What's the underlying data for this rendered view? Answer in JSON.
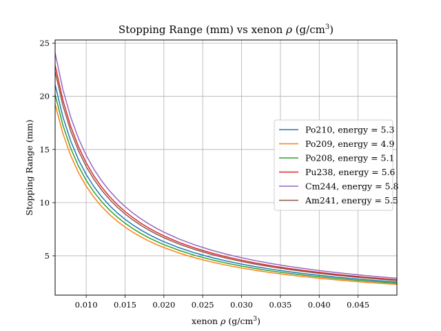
{
  "chart_data": {
    "type": "line",
    "title_main": "Stopping Range (mm) vs xenon ",
    "title_rho": "ρ",
    "title_units_pre": " (g/cm",
    "title_units_sup": "3",
    "title_units_post": ")",
    "xlabel_main": "xenon ",
    "xlabel_rho": "ρ",
    "xlabel_units_pre": " (g/cm",
    "xlabel_units_sup": "3",
    "xlabel_units_post": ")",
    "ylabel": "Stopping Range (mm)",
    "xlim": [
      0.006,
      0.05
    ],
    "ylim": [
      1.3,
      25.3
    ],
    "xticks": [
      0.01,
      0.015,
      0.02,
      0.025,
      0.03,
      0.035,
      0.04,
      0.045
    ],
    "xtick_labels": [
      "0.010",
      "0.015",
      "0.020",
      "0.025",
      "0.030",
      "0.035",
      "0.040",
      "0.045"
    ],
    "yticks": [
      5,
      10,
      15,
      20,
      25
    ],
    "ytick_labels": [
      "5",
      "10",
      "15",
      "20",
      "25"
    ],
    "grid": true,
    "legend_position": "center-right",
    "x_samples": [
      0.006,
      0.007,
      0.008,
      0.009,
      0.01,
      0.011,
      0.012,
      0.013,
      0.014,
      0.015,
      0.016,
      0.017,
      0.018,
      0.019,
      0.02,
      0.022,
      0.024,
      0.026,
      0.028,
      0.03,
      0.032,
      0.034,
      0.036,
      0.038,
      0.04,
      0.042,
      0.044,
      0.046,
      0.048,
      0.05
    ],
    "series": [
      {
        "name": "Po210, energy = 5.3",
        "color": "#1f77b4",
        "k": 0.1265
      },
      {
        "name": "Po209, energy = 4.9",
        "color": "#ff7f0e",
        "k": 0.1155
      },
      {
        "name": "Po208, energy = 5.1",
        "color": "#2ca02c",
        "k": 0.121
      },
      {
        "name": "Pu238, energy = 5.6",
        "color": "#d62728",
        "k": 0.1375
      },
      {
        "name": "Cm244, energy = 5.8",
        "color": "#9467bd",
        "k": 0.1445
      },
      {
        "name": "Am241, energy = 5.5",
        "color": "#8c564b",
        "k": 0.134
      }
    ]
  }
}
